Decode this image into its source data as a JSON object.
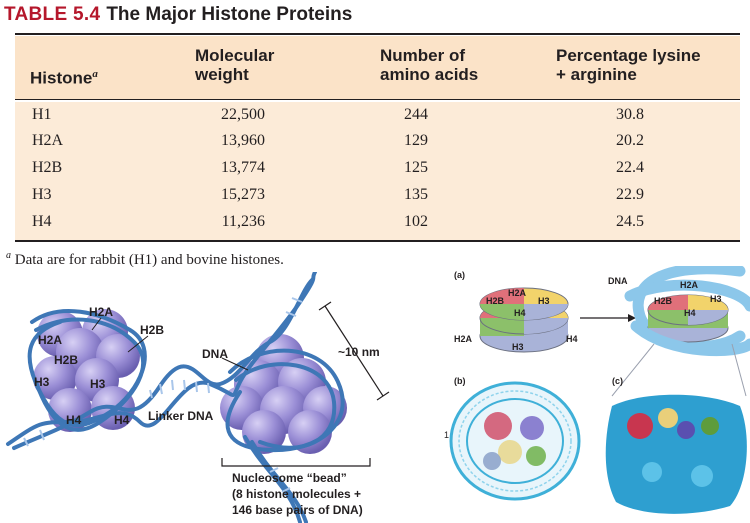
{
  "table": {
    "number": "TABLE 5.4",
    "title": "The Major Histone Proteins",
    "headers": {
      "histone": "Histone",
      "histone_sup": "a",
      "mw_line1": "Molecular",
      "mw_line2": "weight",
      "aa_line1": "Number of",
      "aa_line2": "amino acids",
      "pct_line1": "Percentage lysine",
      "pct_line2": "+ arginine"
    },
    "rows": [
      {
        "histone": "H1",
        "mw": "22,500",
        "aa": "244",
        "pct": "30.8"
      },
      {
        "histone": "H2A",
        "mw": "13,960",
        "aa": "129",
        "pct": "20.2"
      },
      {
        "histone": "H2B",
        "mw": "13,774",
        "aa": "125",
        "pct": "22.4"
      },
      {
        "histone": "H3",
        "mw": "15,273",
        "aa": "135",
        "pct": "22.9"
      },
      {
        "histone": "H4",
        "mw": "11,236",
        "aa": "102",
        "pct": "24.5"
      }
    ],
    "footnote_mark": "a",
    "footnote": "Data are for rabbit (H1) and bovine histones."
  },
  "left_figure": {
    "h2a_top": "H2A",
    "h2a": "H2A",
    "h2b_left": "H2B",
    "h2b_right": "H2B",
    "h3_left": "H3",
    "h3_center": "H3",
    "h4_left": "H4",
    "h4_right": "H4",
    "linker": "Linker DNA",
    "dna": "DNA",
    "size": "~10 nm",
    "bead_line1": "Nucleosome “bead”",
    "bead_line2": "(8 histone molecules +",
    "bead_line3": "146 base pairs of DNA)"
  },
  "right_figure": {
    "panel_a": "(a)",
    "panel_b": "(b)",
    "panel_c": "(c)",
    "a_h2a": "H2A",
    "a_h2b": "H2B",
    "a_h3": "H3",
    "a_h4": "H4",
    "a_h2a_side": "H2A",
    "a_h4_side": "H4",
    "a_h3_bottom": "H3",
    "dna": "DNA",
    "r_h2a": "H2A",
    "r_h2b": "H2B",
    "r_h3": "H3",
    "r_h4": "H4",
    "side_mark": "1"
  },
  "colors": {
    "title_red": "#b5172b",
    "header_bg": "#fbe3c8",
    "body_bg": "#fcebd8",
    "histone_purple": "#9b8fd6",
    "dna_blue": "#3e77b6",
    "h2a_yellow": "#f2d36b",
    "h2b_red": "#e0707a",
    "h3_blue": "#a9b3d8",
    "h4_green": "#8cc06a",
    "tube_blue": "#8cc7ea"
  }
}
